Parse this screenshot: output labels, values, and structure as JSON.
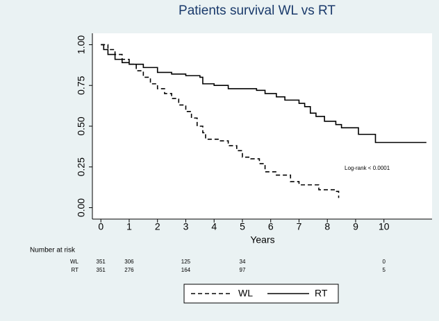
{
  "chart_data": {
    "type": "line",
    "step": "post",
    "title": "Patients survival WL vs RT",
    "x_label": "Years",
    "annotation": "Log-rank < 0.0001",
    "xlim": [
      -0.3,
      11.7
    ],
    "ylim": [
      -0.07,
      1.07
    ],
    "xticks": [
      0,
      1,
      2,
      3,
      4,
      5,
      6,
      7,
      8,
      9,
      10
    ],
    "yticks": [
      {
        "value": 0,
        "label": "0.00"
      },
      0.25,
      {
        "value": 0.5,
        "label": "0.50"
      },
      0.75,
      {
        "value": 1,
        "label": "1.00"
      }
    ],
    "legend": "bottom",
    "series": [
      {
        "name": "WL",
        "color": "#000000",
        "dash": "dashed",
        "x": [
          0,
          0.25,
          0.5,
          0.75,
          1,
          1.25,
          1.5,
          1.75,
          2,
          2.25,
          2.5,
          2.75,
          3,
          3.2,
          3.4,
          3.6,
          3.7,
          4.2,
          4.5,
          4.8,
          5,
          5.3,
          5.6,
          5.8,
          6.2,
          6.7,
          7,
          7.7,
          8.3,
          8.4
        ],
        "values": [
          1,
          0.97,
          0.94,
          0.91,
          0.88,
          0.84,
          0.8,
          0.76,
          0.73,
          0.7,
          0.67,
          0.63,
          0.59,
          0.55,
          0.5,
          0.46,
          0.42,
          0.41,
          0.38,
          0.35,
          0.31,
          0.3,
          0.27,
          0.22,
          0.2,
          0.16,
          0.14,
          0.11,
          0.1,
          0.06
        ]
      },
      {
        "name": "RT",
        "color": "#000000",
        "dash": "solid",
        "x": [
          0,
          0.1,
          0.25,
          0.5,
          0.75,
          1,
          1.5,
          2,
          2.5,
          3,
          3.5,
          3.6,
          4,
          4.5,
          5.5,
          5.8,
          6.2,
          6.5,
          7,
          7.2,
          7.4,
          7.6,
          7.9,
          8.3,
          8.5,
          9.1,
          9.7,
          11.5
        ],
        "values": [
          1,
          0.97,
          0.94,
          0.91,
          0.89,
          0.88,
          0.86,
          0.83,
          0.82,
          0.81,
          0.8,
          0.76,
          0.75,
          0.73,
          0.72,
          0.7,
          0.68,
          0.66,
          0.64,
          0.62,
          0.58,
          0.56,
          0.53,
          0.51,
          0.49,
          0.45,
          0.4,
          0.4
        ]
      }
    ],
    "risk_table": {
      "title": "Number at risk",
      "rows": [
        {
          "name": "WL",
          "values": [
            351,
            306,
            125,
            34,
            0
          ]
        },
        {
          "name": "RT",
          "values": [
            351,
            276,
            164,
            97,
            5
          ]
        }
      ]
    }
  }
}
